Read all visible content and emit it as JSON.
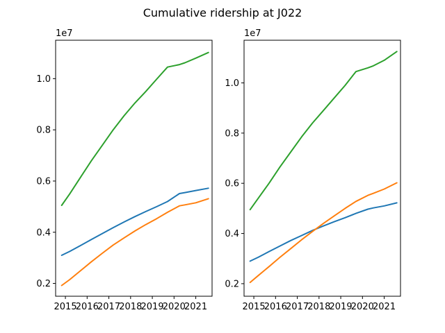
{
  "figure": {
    "title": "Cumulative ridership at J022"
  },
  "chart_data": [
    {
      "type": "line",
      "title": "",
      "xlabel": "",
      "ylabel": "",
      "y_offset_label": "1e7",
      "xlim": [
        2014.55,
        2021.75
      ],
      "ylim": [
        0.15,
        1.15
      ],
      "xticks": [
        2015,
        2016,
        2017,
        2018,
        2019,
        2020,
        2021
      ],
      "xtick_labels": [
        "2015",
        "2016",
        "2017",
        "2018",
        "2019",
        "2020",
        "2021"
      ],
      "yticks": [
        0.2,
        0.4,
        0.6,
        0.8,
        1.0
      ],
      "ytick_labels": [
        "0.2",
        "0.4",
        "0.6",
        "0.8",
        "1.0"
      ],
      "grid": false,
      "series": [
        {
          "color": "#1f77b4",
          "x": [
            2014.83,
            2015.2,
            2015.7,
            2016.2,
            2016.7,
            2017.2,
            2017.7,
            2018.2,
            2018.7,
            2019.2,
            2019.7,
            2020.25,
            2020.5,
            2021,
            2021.58
          ],
          "y": [
            0.31,
            0.325,
            0.348,
            0.372,
            0.395,
            0.418,
            0.44,
            0.461,
            0.481,
            0.5,
            0.52,
            0.551,
            0.555,
            0.563,
            0.572
          ]
        },
        {
          "color": "#ff7f0e",
          "x": [
            2014.83,
            2015.2,
            2015.7,
            2016.2,
            2016.7,
            2017.2,
            2017.7,
            2018.2,
            2018.7,
            2019.2,
            2019.7,
            2020.25,
            2020.5,
            2021,
            2021.58
          ],
          "y": [
            0.192,
            0.215,
            0.25,
            0.285,
            0.318,
            0.35,
            0.378,
            0.405,
            0.43,
            0.453,
            0.478,
            0.503,
            0.507,
            0.515,
            0.531
          ]
        },
        {
          "color": "#2ca02c",
          "x": [
            2014.83,
            2015.2,
            2015.7,
            2016.2,
            2016.7,
            2017.2,
            2017.7,
            2018.2,
            2018.7,
            2019.2,
            2019.7,
            2020.25,
            2020.5,
            2021,
            2021.58
          ],
          "y": [
            0.505,
            0.55,
            0.615,
            0.68,
            0.74,
            0.8,
            0.855,
            0.905,
            0.95,
            0.998,
            1.045,
            1.055,
            1.062,
            1.08,
            1.102
          ]
        }
      ]
    },
    {
      "type": "line",
      "title": "",
      "xlabel": "",
      "ylabel": "",
      "y_offset_label": "1e7",
      "xlim": [
        2014.55,
        2021.75
      ],
      "ylim": [
        0.15,
        1.17
      ],
      "xticks": [
        2015,
        2016,
        2017,
        2018,
        2019,
        2020,
        2021
      ],
      "xtick_labels": [
        "2015",
        "2016",
        "2017",
        "2018",
        "2019",
        "2020",
        "2021"
      ],
      "yticks": [
        0.2,
        0.4,
        0.6,
        0.8,
        1.0
      ],
      "ytick_labels": [
        "0.2",
        "0.4",
        "0.6",
        "0.8",
        "1.0"
      ],
      "grid": false,
      "series": [
        {
          "color": "#1f77b4",
          "x": [
            2014.83,
            2015.2,
            2015.7,
            2016.2,
            2016.7,
            2017.2,
            2017.7,
            2018.2,
            2018.7,
            2019.2,
            2019.7,
            2020.25,
            2020.5,
            2021,
            2021.58
          ],
          "y": [
            0.29,
            0.305,
            0.328,
            0.35,
            0.372,
            0.392,
            0.412,
            0.43,
            0.447,
            0.463,
            0.48,
            0.497,
            0.502,
            0.51,
            0.522
          ]
        },
        {
          "color": "#ff7f0e",
          "x": [
            2014.83,
            2015.2,
            2015.7,
            2016.2,
            2016.7,
            2017.2,
            2017.7,
            2018.2,
            2018.7,
            2019.2,
            2019.7,
            2020.25,
            2020.5,
            2021,
            2021.58
          ],
          "y": [
            0.205,
            0.232,
            0.268,
            0.305,
            0.34,
            0.375,
            0.408,
            0.44,
            0.47,
            0.5,
            0.528,
            0.552,
            0.56,
            0.577,
            0.602
          ]
        },
        {
          "color": "#2ca02c",
          "x": [
            2014.83,
            2015.2,
            2015.7,
            2016.2,
            2016.7,
            2017.2,
            2017.7,
            2018.2,
            2018.7,
            2019.2,
            2019.7,
            2020.25,
            2020.5,
            2021,
            2021.58
          ],
          "y": [
            0.495,
            0.54,
            0.6,
            0.665,
            0.725,
            0.785,
            0.84,
            0.89,
            0.94,
            0.99,
            1.045,
            1.06,
            1.068,
            1.09,
            1.125
          ]
        }
      ]
    }
  ]
}
